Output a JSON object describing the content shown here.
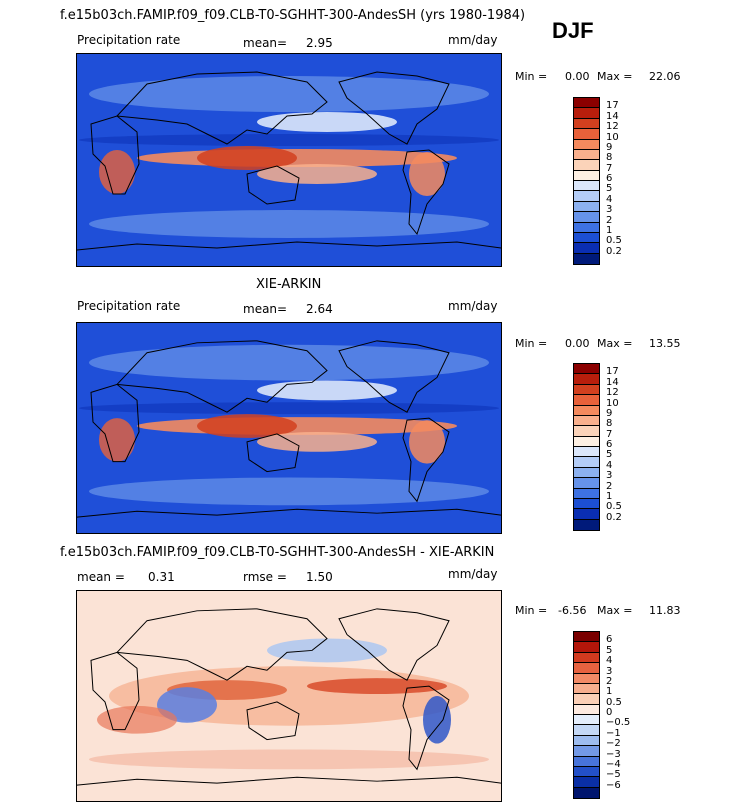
{
  "header": {
    "title": "f.e15b03ch.FAMIP.f09_f09.CLB-T0-SGHHT-300-AndesSH (yrs 1980-1984)",
    "season": "DJF"
  },
  "panels": [
    {
      "id": "model",
      "variable": "Precipitation rate",
      "mean_label": "mean=",
      "mean_value": "2.95",
      "units": "mm/day",
      "min_label": "Min =",
      "min_value": "0.00",
      "max_label": "Max =",
      "max_value": "22.06",
      "palette": "precip",
      "colorbar_levels": [
        "17",
        "14",
        "12",
        "10",
        "9",
        "8",
        "7",
        "6",
        "5",
        "4",
        "3",
        "2",
        "1",
        "0.5",
        "0.2"
      ],
      "colorbar_colors": [
        "#8b0000",
        "#b81e0c",
        "#d2401f",
        "#e8613a",
        "#f48a5e",
        "#f9b08d",
        "#fbd3b9",
        "#fdf0e3",
        "#dbe7fb",
        "#b4cdf7",
        "#8cb1f0",
        "#6693ea",
        "#3e72e3",
        "#1c4fd3",
        "#0a2eb2",
        "#001a7a"
      ]
    },
    {
      "id": "obs",
      "title": "XIE-ARKIN",
      "variable": "Precipitation rate",
      "mean_label": "mean=",
      "mean_value": "2.64",
      "units": "mm/day",
      "min_label": "Min =",
      "min_value": "0.00",
      "max_label": "Max =",
      "max_value": "13.55",
      "palette": "precip",
      "colorbar_levels": [
        "17",
        "14",
        "12",
        "10",
        "9",
        "8",
        "7",
        "6",
        "5",
        "4",
        "3",
        "2",
        "1",
        "0.5",
        "0.2"
      ],
      "colorbar_colors": [
        "#8b0000",
        "#b81e0c",
        "#d2401f",
        "#e8613a",
        "#f48a5e",
        "#f9b08d",
        "#fbd3b9",
        "#fdf0e3",
        "#dbe7fb",
        "#b4cdf7",
        "#8cb1f0",
        "#6693ea",
        "#3e72e3",
        "#1c4fd3",
        "#0a2eb2",
        "#001a7a"
      ]
    },
    {
      "id": "diff",
      "title": "f.e15b03ch.FAMIP.f09_f09.CLB-T0-SGHHT-300-AndesSH - XIE-ARKIN",
      "mean_label": "mean =",
      "mean_value": "0.31",
      "rmse_label": "rmse =",
      "rmse_value": "1.50",
      "units": "mm/day",
      "min_label": "Min =",
      "min_value": "-6.56",
      "max_label": "Max =",
      "max_value": "11.83",
      "palette": "diff",
      "colorbar_levels": [
        "6",
        "5",
        "4",
        "3",
        "2",
        "1",
        "0.5",
        "0",
        "−0.5",
        "−1",
        "−2",
        "−3",
        "−4",
        "−5",
        "−6"
      ],
      "colorbar_colors": [
        "#7a0000",
        "#b3160a",
        "#d23a1f",
        "#e66240",
        "#f28a66",
        "#f7ae8e",
        "#fbcfb6",
        "#fdeae0",
        "#e4eefc",
        "#c4d8f6",
        "#9dbcef",
        "#7399e6",
        "#4874da",
        "#2350c8",
        "#0a2fa6",
        "#00156e"
      ]
    }
  ]
}
